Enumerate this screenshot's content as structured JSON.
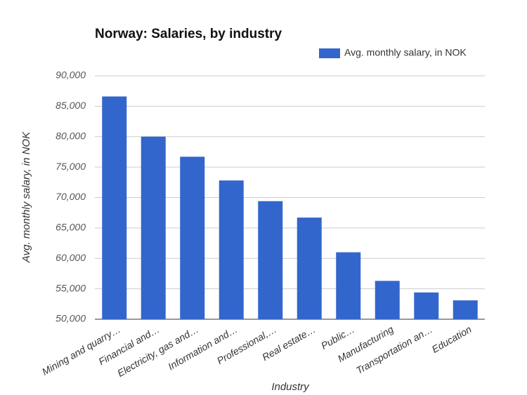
{
  "chart_data": {
    "type": "bar",
    "title": "Norway: Salaries, by industry",
    "x_label": "Industry",
    "y_label": "Avg. monthly salary, in NOK",
    "categories": [
      "Mining and quarry…",
      "Financial and…",
      "Electricity, gas and…",
      "Information and…",
      "Professional,…",
      "Real estate…",
      "Public…",
      "Manufacturing",
      "Transportation an…",
      "Education"
    ],
    "series": [
      {
        "name": "Avg. monthly salary, in NOK",
        "color": "#3366cc",
        "values": [
          86600,
          80000,
          76700,
          72800,
          69400,
          66700,
          61000,
          56300,
          54400,
          53100
        ]
      }
    ],
    "ylim": [
      50000,
      90000
    ],
    "yticks": [
      {
        "value": 50000,
        "label": "50,000"
      },
      {
        "value": 55000,
        "label": "55,000"
      },
      {
        "value": 60000,
        "label": "60,000"
      },
      {
        "value": 65000,
        "label": "65,000"
      },
      {
        "value": 70000,
        "label": "70,000"
      },
      {
        "value": 75000,
        "label": "75,000"
      },
      {
        "value": 80000,
        "label": "80,000"
      },
      {
        "value": 85000,
        "label": "85,000"
      },
      {
        "value": 90000,
        "label": "90,000"
      }
    ],
    "grid": true,
    "legend": "top-right"
  }
}
